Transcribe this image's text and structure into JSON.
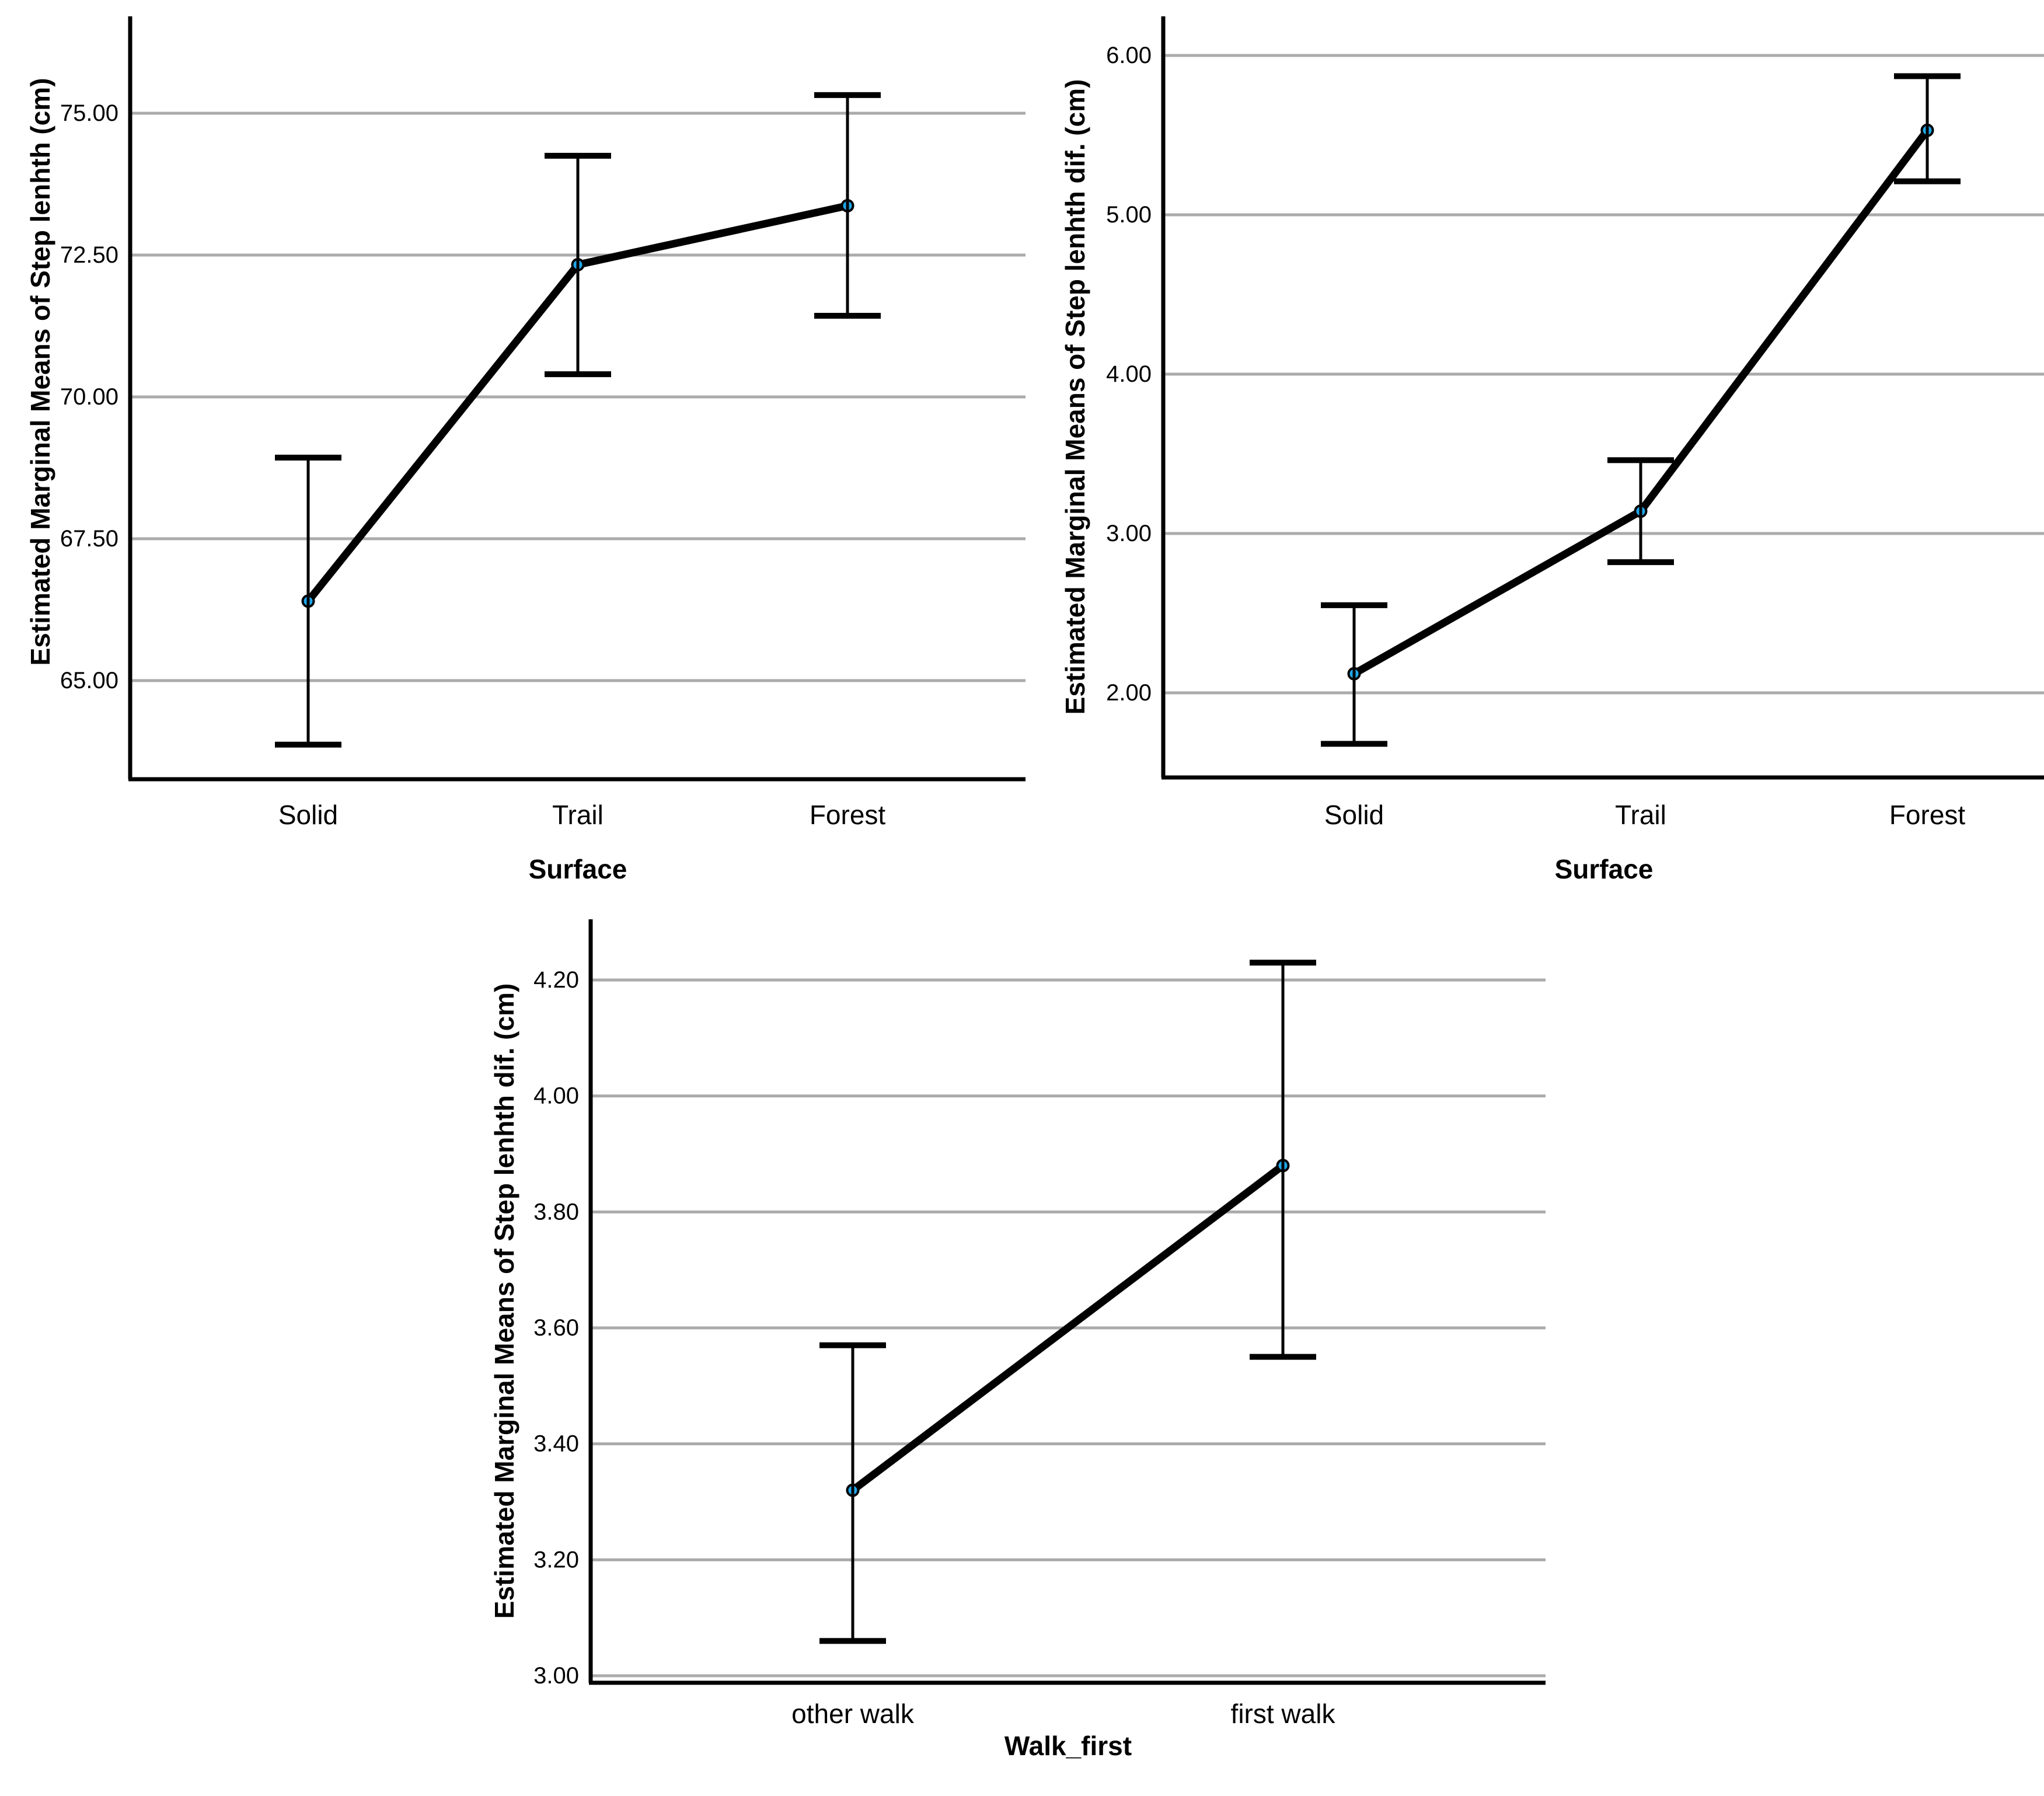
{
  "page": {
    "background": "#ffffff",
    "description": "Three SPSS estimated-marginal-means line charts with 95% confidence-interval error bars"
  },
  "style": {
    "grid_color": "#ABABAB",
    "axis_color": "#000000",
    "line_color": "#000000",
    "marker_fill": "#1FA8EC",
    "marker_stroke": "#000000",
    "text_color": "#000000"
  },
  "chart_data": [
    {
      "type": "line",
      "title": "",
      "xlabel": "Surface",
      "ylabel": "Estimated Marginal Means of Step lenhth (cm)",
      "categories": [
        "Solid",
        "Trail",
        "Forest"
      ],
      "series": [
        {
          "name": "Estimated Marginal Means of Step lenhth (cm)",
          "values": [
            66.4,
            72.33,
            73.37
          ],
          "ci_lower": [
            63.87,
            70.4,
            71.43
          ],
          "ci_upper": [
            68.93,
            74.25,
            75.32
          ]
        }
      ],
      "y_ticks": {
        "values": [
          65.0,
          67.5,
          70.0,
          72.5,
          75.0
        ],
        "labels": [
          "65.00",
          "67.50",
          "70.00",
          "72.50",
          "75.00"
        ]
      },
      "ylim": [
        63.261,
        76.708
      ],
      "grid": true,
      "legend": "none"
    },
    {
      "type": "line",
      "title": "",
      "xlabel": "Surface",
      "ylabel": "Estimated Marginal Means of Step lenhth dif. (cm)",
      "categories": [
        "Solid",
        "Trail",
        "Forest"
      ],
      "series": [
        {
          "name": "Estimated Marginal Means of Step lenhth dif. (cm)",
          "values": [
            2.12,
            3.14,
            5.53
          ],
          "ci_lower": [
            1.68,
            2.82,
            5.21
          ],
          "ci_upper": [
            2.55,
            3.46,
            5.87
          ]
        }
      ],
      "y_ticks": {
        "values": [
          2.0,
          3.0,
          4.0,
          5.0,
          6.0
        ],
        "labels": [
          "2.00",
          "3.00",
          "4.00",
          "5.00",
          "6.00"
        ]
      },
      "ylim": [
        1.4688,
        6.2454
      ],
      "grid": true,
      "legend": "none"
    },
    {
      "type": "line",
      "title": "",
      "xlabel": "Walk_first",
      "ylabel": "Estimated Marginal Means of Step lenhth dif. (cm)",
      "categories": [
        "other walk",
        "first walk"
      ],
      "series": [
        {
          "name": "Estimated Marginal Means of Step lenhth dif. (cm)",
          "values": [
            3.32,
            3.88
          ],
          "ci_lower": [
            3.06,
            3.55
          ],
          "ci_upper": [
            3.57,
            4.23
          ]
        }
      ],
      "y_ticks": {
        "values": [
          3.0,
          3.2,
          3.4,
          3.6,
          3.8,
          4.0,
          4.2
        ],
        "labels": [
          "3.00",
          "3.20",
          "3.40",
          "3.60",
          "3.80",
          "4.00",
          "4.20"
        ]
      },
      "ylim": [
        2.98792,
        4.3047
      ],
      "grid": true,
      "legend": "none"
    }
  ]
}
